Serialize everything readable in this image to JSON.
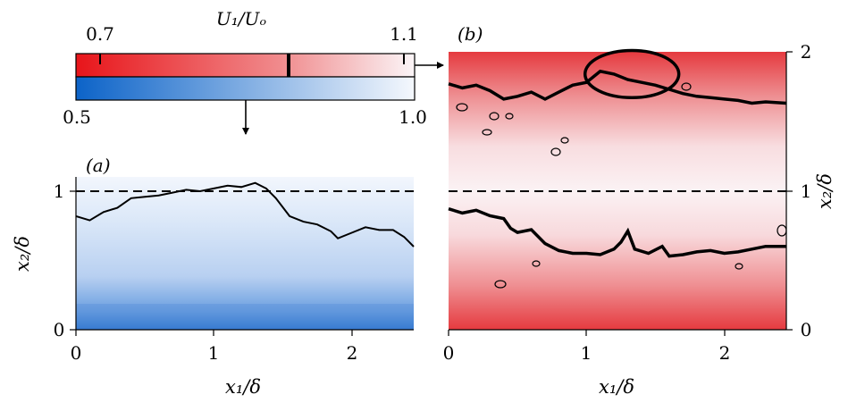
{
  "colorbar": {
    "title": "U₁/Uₒ",
    "red_ticks": [
      "0.7",
      "1.1"
    ],
    "blue_ticks": [
      "0.5",
      "1.0"
    ],
    "red_range": [
      0.6,
      1.1
    ],
    "blue_range": [
      0.5,
      1.0
    ],
    "red_color_low": "#e8151a",
    "red_color_high": "#fbf5f7",
    "blue_color_low": "#0c63c8",
    "blue_color_high": "#f5f8fd"
  },
  "chart_data": [
    {
      "panel_label": "(a)",
      "type": "heatmap",
      "xlabel": "x₁/δ",
      "ylabel": "x₂/δ",
      "xlim": [
        0,
        2.45
      ],
      "ylim": [
        0,
        1.1
      ],
      "xticks": [
        "0",
        "1",
        "2"
      ],
      "yticks": [
        "0",
        "1"
      ],
      "dashed_line_y": 1.0,
      "colormap": "blue",
      "interface": [
        [
          0,
          0.82
        ],
        [
          0.1,
          0.79
        ],
        [
          0.2,
          0.85
        ],
        [
          0.3,
          0.88
        ],
        [
          0.4,
          0.95
        ],
        [
          0.5,
          0.96
        ],
        [
          0.6,
          0.97
        ],
        [
          0.7,
          0.99
        ],
        [
          0.8,
          1.01
        ],
        [
          0.9,
          1.0
        ],
        [
          1.0,
          1.02
        ],
        [
          1.1,
          1.04
        ],
        [
          1.2,
          1.03
        ],
        [
          1.3,
          1.06
        ],
        [
          1.38,
          1.02
        ],
        [
          1.45,
          0.95
        ],
        [
          1.55,
          0.82
        ],
        [
          1.65,
          0.78
        ],
        [
          1.75,
          0.76
        ],
        [
          1.85,
          0.71
        ],
        [
          1.9,
          0.66
        ],
        [
          2.0,
          0.7
        ],
        [
          2.1,
          0.74
        ],
        [
          2.2,
          0.72
        ],
        [
          2.3,
          0.72
        ],
        [
          2.38,
          0.67
        ],
        [
          2.45,
          0.6
        ]
      ]
    },
    {
      "panel_label": "(b)",
      "type": "heatmap",
      "xlabel": "x₁/δ",
      "ylabel": "x₂/δ",
      "xlim": [
        0,
        2.45
      ],
      "ylim": [
        0,
        2
      ],
      "xticks": [
        "0",
        "1",
        "2"
      ],
      "yticks": [
        "0",
        "1",
        "2"
      ],
      "dashed_line_y": 1.0,
      "colormap": "red",
      "interface_upper": [
        [
          0,
          1.77
        ],
        [
          0.1,
          1.74
        ],
        [
          0.2,
          1.76
        ],
        [
          0.3,
          1.72
        ],
        [
          0.4,
          1.66
        ],
        [
          0.5,
          1.68
        ],
        [
          0.6,
          1.71
        ],
        [
          0.7,
          1.66
        ],
        [
          0.8,
          1.71
        ],
        [
          0.9,
          1.76
        ],
        [
          1.0,
          1.78
        ],
        [
          1.1,
          1.86
        ],
        [
          1.2,
          1.84
        ],
        [
          1.3,
          1.8
        ],
        [
          1.4,
          1.78
        ],
        [
          1.5,
          1.76
        ],
        [
          1.6,
          1.73
        ],
        [
          1.7,
          1.7
        ],
        [
          1.8,
          1.68
        ],
        [
          1.9,
          1.67
        ],
        [
          2.0,
          1.66
        ],
        [
          2.1,
          1.65
        ],
        [
          2.2,
          1.63
        ],
        [
          2.3,
          1.64
        ],
        [
          2.45,
          1.63
        ]
      ],
      "interface_lower": [
        [
          0,
          0.87
        ],
        [
          0.1,
          0.84
        ],
        [
          0.2,
          0.86
        ],
        [
          0.3,
          0.82
        ],
        [
          0.4,
          0.8
        ],
        [
          0.45,
          0.73
        ],
        [
          0.5,
          0.7
        ],
        [
          0.6,
          0.72
        ],
        [
          0.7,
          0.62
        ],
        [
          0.8,
          0.57
        ],
        [
          0.9,
          0.55
        ],
        [
          1.0,
          0.55
        ],
        [
          1.1,
          0.54
        ],
        [
          1.2,
          0.58
        ],
        [
          1.25,
          0.63
        ],
        [
          1.3,
          0.71
        ],
        [
          1.35,
          0.58
        ],
        [
          1.45,
          0.55
        ],
        [
          1.55,
          0.6
        ],
        [
          1.6,
          0.53
        ],
        [
          1.7,
          0.54
        ],
        [
          1.8,
          0.56
        ],
        [
          1.9,
          0.57
        ],
        [
          2.0,
          0.55
        ],
        [
          2.1,
          0.56
        ],
        [
          2.2,
          0.58
        ],
        [
          2.3,
          0.6
        ],
        [
          2.45,
          0.6
        ]
      ],
      "circle_center": [
        1.33,
        1.84
      ],
      "circle_radius": [
        0.34,
        0.17
      ]
    }
  ]
}
